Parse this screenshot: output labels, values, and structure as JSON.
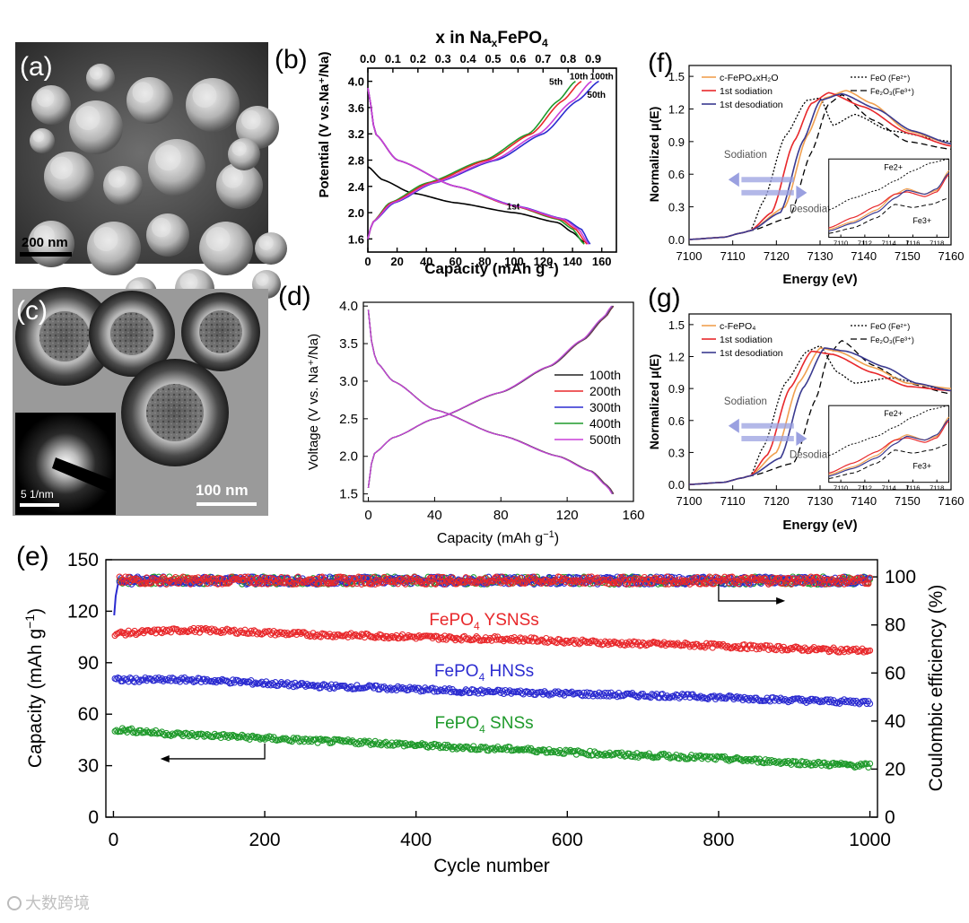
{
  "panels": {
    "a": {
      "label": "(a)",
      "scale_bar": "200 nm"
    },
    "b": {
      "label": "(b)"
    },
    "c": {
      "label": "(c)",
      "scale_bar": "100 nm",
      "inset_scale": "5 1/nm"
    },
    "d": {
      "label": "(d)"
    },
    "e": {
      "label": "(e)"
    },
    "f": {
      "label": "(f)"
    },
    "g": {
      "label": "(g)"
    }
  },
  "watermark": "大数跨境",
  "colors": {
    "black": "#000000",
    "red": "#e8282b",
    "blue": "#2b2bd0",
    "green": "#1f9a2b",
    "magenta": "#c93fd8",
    "orange": "#f0a050",
    "darkblue": "#3a3a90"
  },
  "chart_data": [
    {
      "id": "b",
      "type": "line",
      "top_title": "x in Na",
      "top_title_sub": "x",
      "top_title_rest": "FePO",
      "top_title_sub2": "4",
      "xlabel": "Capacity (mAh g",
      "xlabel_sup": "-1",
      "xlabel_end": ")",
      "ylabel": "Potential (V vs.Na⁺/Na)",
      "xlim": [
        0,
        170
      ],
      "ylim": [
        1.4,
        4.2
      ],
      "x_ticks": [
        "0",
        "20",
        "40",
        "60",
        "80",
        "100",
        "120",
        "140",
        "160"
      ],
      "y_ticks": [
        "1.6",
        "2.0",
        "2.4",
        "2.8",
        "3.2",
        "3.6",
        "4.0"
      ],
      "top_ticks": [
        "0.0",
        "0.1",
        "0.2",
        "0.3",
        "0.4",
        "0.5",
        "0.6",
        "0.7",
        "0.8",
        "0.9"
      ],
      "annotations": [
        "1st",
        "5th",
        "10th",
        "100th",
        "50th"
      ],
      "series": [
        {
          "name": "1st",
          "color": "#000000",
          "discharge": [
            [
              0,
              2.7
            ],
            [
              10,
              2.5
            ],
            [
              30,
              2.3
            ],
            [
              60,
              2.15
            ],
            [
              100,
              2.0
            ],
            [
              130,
              1.85
            ],
            [
              140,
              1.7
            ],
            [
              148,
              1.55
            ]
          ]
        },
        {
          "name": "5th",
          "color": "#1f9a2b",
          "charge": [
            [
              0,
              1.6
            ],
            [
              3,
              1.85
            ],
            [
              15,
              2.15
            ],
            [
              40,
              2.45
            ],
            [
              80,
              2.8
            ],
            [
              110,
              3.2
            ],
            [
              130,
              3.7
            ],
            [
              142,
              4.0
            ]
          ],
          "discharge": [
            [
              0,
              3.9
            ],
            [
              5,
              3.2
            ],
            [
              20,
              2.8
            ],
            [
              60,
              2.4
            ],
            [
              100,
              2.1
            ],
            [
              130,
              1.9
            ],
            [
              140,
              1.75
            ],
            [
              148,
              1.52
            ]
          ]
        },
        {
          "name": "10th",
          "color": "#e8282b",
          "charge": [
            [
              0,
              1.6
            ],
            [
              3,
              1.85
            ],
            [
              16,
              2.15
            ],
            [
              42,
              2.45
            ],
            [
              82,
              2.8
            ],
            [
              112,
              3.2
            ],
            [
              133,
              3.7
            ],
            [
              146,
              4.0
            ]
          ],
          "discharge": [
            [
              0,
              3.9
            ],
            [
              5,
              3.2
            ],
            [
              20,
              2.8
            ],
            [
              60,
              2.4
            ],
            [
              100,
              2.1
            ],
            [
              132,
              1.9
            ],
            [
              142,
              1.75
            ],
            [
              150,
              1.52
            ]
          ]
        },
        {
          "name": "50th",
          "color": "#2b2bd0",
          "charge": [
            [
              0,
              1.6
            ],
            [
              3,
              1.85
            ],
            [
              18,
              2.15
            ],
            [
              45,
              2.45
            ],
            [
              88,
              2.8
            ],
            [
              120,
              3.2
            ],
            [
              143,
              3.7
            ],
            [
              158,
              4.0
            ]
          ],
          "discharge": [
            [
              0,
              3.9
            ],
            [
              5,
              3.2
            ],
            [
              20,
              2.8
            ],
            [
              60,
              2.4
            ],
            [
              102,
              2.1
            ],
            [
              135,
              1.9
            ],
            [
              146,
              1.75
            ],
            [
              152,
              1.52
            ]
          ]
        },
        {
          "name": "100th",
          "color": "#c93fd8",
          "charge": [
            [
              0,
              1.6
            ],
            [
              3,
              1.85
            ],
            [
              17,
              2.15
            ],
            [
              44,
              2.45
            ],
            [
              86,
              2.8
            ],
            [
              117,
              3.2
            ],
            [
              140,
              3.7
            ],
            [
              153,
              4.0
            ]
          ],
          "discharge": [
            [
              0,
              3.9
            ],
            [
              5,
              3.2
            ],
            [
              20,
              2.8
            ],
            [
              60,
              2.4
            ],
            [
              101,
              2.1
            ],
            [
              134,
              1.9
            ],
            [
              144,
              1.75
            ],
            [
              151,
              1.52
            ]
          ]
        }
      ]
    },
    {
      "id": "d",
      "type": "line",
      "xlabel": "Capacity (mAh g",
      "xlabel_sup": "−1",
      "xlabel_end": ")",
      "ylabel": "Voltage (V vs. Na⁺/Na)",
      "xlim": [
        -3,
        160
      ],
      "ylim": [
        1.4,
        4.05
      ],
      "x_ticks": [
        "0",
        "40",
        "80",
        "120",
        "160"
      ],
      "y_ticks": [
        "1.5",
        "2.0",
        "2.5",
        "3.0",
        "3.5",
        "4.0"
      ],
      "legend_position": "right",
      "series": [
        {
          "name": "100th",
          "color": "#222222"
        },
        {
          "name": "200th",
          "color": "#e8282b"
        },
        {
          "name": "300th",
          "color": "#2b2bd0"
        },
        {
          "name": "400th",
          "color": "#1f9a2b"
        },
        {
          "name": "500th",
          "color": "#c93fd8"
        }
      ],
      "charge": [
        [
          0,
          1.58
        ],
        [
          1,
          1.85
        ],
        [
          4,
          2.05
        ],
        [
          15,
          2.25
        ],
        [
          40,
          2.5
        ],
        [
          80,
          2.85
        ],
        [
          110,
          3.2
        ],
        [
          130,
          3.55
        ],
        [
          143,
          3.85
        ],
        [
          148,
          4.0
        ]
      ],
      "discharge": [
        [
          0,
          3.95
        ],
        [
          1,
          3.6
        ],
        [
          5,
          3.25
        ],
        [
          15,
          3.0
        ],
        [
          40,
          2.62
        ],
        [
          80,
          2.28
        ],
        [
          115,
          2.0
        ],
        [
          135,
          1.8
        ],
        [
          145,
          1.6
        ],
        [
          148,
          1.5
        ]
      ]
    },
    {
      "id": "e",
      "type": "scatter",
      "xlabel": "Cycle number",
      "ylabel_left": "Capacity (mAh g",
      "ylabel_left_sup": "−1",
      "ylabel_left_end": ")",
      "ylabel_right": "Coulombic efficiency (%)",
      "xlim": [
        -10,
        1010
      ],
      "ylim_left": [
        0,
        150
      ],
      "ylim_right": [
        0,
        107.14
      ],
      "x_ticks": [
        "0",
        "200",
        "400",
        "600",
        "800",
        "1000"
      ],
      "y_ticks_left": [
        "0",
        "30",
        "60",
        "90",
        "120",
        "150"
      ],
      "y_ticks_right": [
        "0",
        "20",
        "40",
        "60",
        "80",
        "100"
      ],
      "series": [
        {
          "name": "FePO",
          "name_sub": "4",
          "name_rest": " YSNSs",
          "color": "#e8282b",
          "capacity": [
            [
              0,
              107
            ],
            [
              100,
              109
            ],
            [
              300,
              106
            ],
            [
              500,
              104
            ],
            [
              700,
              101
            ],
            [
              1000,
              97
            ]
          ]
        },
        {
          "name": "FePO",
          "name_sub": "4",
          "name_rest": " HNSs",
          "color": "#2b2bd0",
          "capacity": [
            [
              0,
              80
            ],
            [
              100,
              80
            ],
            [
              300,
              76
            ],
            [
              500,
              73
            ],
            [
              700,
              71
            ],
            [
              1000,
              67
            ]
          ]
        },
        {
          "name": "FePO",
          "name_sub": "4",
          "name_rest": " SNSs",
          "color": "#1f9a2b",
          "capacity": [
            [
              0,
              51
            ],
            [
              100,
              48
            ],
            [
              300,
              44
            ],
            [
              500,
              40
            ],
            [
              700,
              36
            ],
            [
              1000,
              30
            ]
          ]
        }
      ],
      "coulombic_efficiency": 98.5
    },
    {
      "id": "f",
      "type": "line",
      "xlabel": "Energy (eV)",
      "ylabel": "Normalized μ(E)",
      "xlim": [
        7100,
        7160
      ],
      "ylim": [
        -0.05,
        1.6
      ],
      "x_ticks": [
        "7100",
        "7110",
        "7120",
        "7130",
        "7140",
        "7150",
        "7160"
      ],
      "y_ticks": [
        "0.0",
        "0.3",
        "0.6",
        "0.9",
        "1.2",
        "1.5"
      ],
      "legend": [
        "c-FePO₄xH₂O",
        "1st sodiation",
        "1st desodiation",
        "FeO (Fe²⁺)",
        "Fe₂O₃(Fe³⁺)"
      ],
      "annotations": [
        "Sodiation",
        "Desodiation",
        "Fe2+",
        "Fe3+"
      ],
      "inset_x_ticks": [
        "7110",
        "7112",
        "7114",
        "7116",
        "7118"
      ]
    },
    {
      "id": "g",
      "type": "line",
      "xlabel": "Energy (eV)",
      "ylabel": "Normalized μ(E)",
      "xlim": [
        7100,
        7160
      ],
      "ylim": [
        -0.05,
        1.6
      ],
      "x_ticks": [
        "7100",
        "7110",
        "7120",
        "7130",
        "7140",
        "7150",
        "7160"
      ],
      "y_ticks": [
        "0.0",
        "0.3",
        "0.6",
        "0.9",
        "1.2",
        "1.5"
      ],
      "legend": [
        "c-FePO₄",
        "1st sodiation",
        "1st desodiation",
        "FeO (Fe²⁺)",
        "Fe₂O₃(Fe³⁺)"
      ],
      "annotations": [
        "Sodiation",
        "Desodiation",
        "Fe2+",
        "Fe3+"
      ],
      "inset_x_ticks": [
        "7110",
        "7112",
        "7114",
        "7116",
        "7118"
      ]
    }
  ]
}
